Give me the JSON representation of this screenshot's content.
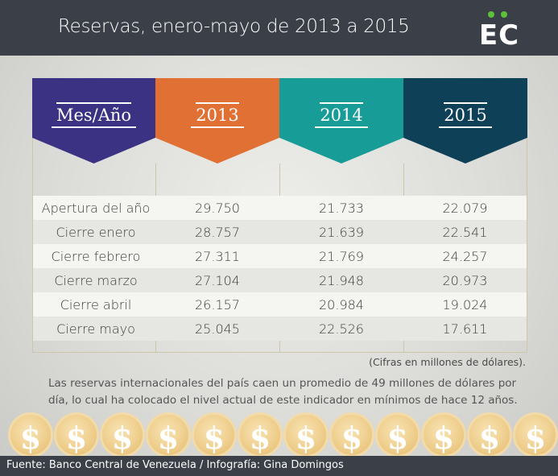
{
  "header": {
    "title": "Reservas, enero-mayo de 2013 a 2015",
    "logo_text": "EC",
    "logo_dot_color": "#5cc23a"
  },
  "table": {
    "columns": [
      {
        "label": "Mes/Año",
        "color": "#3b3283"
      },
      {
        "label": "2013",
        "color": "#e07033"
      },
      {
        "label": "2014",
        "color": "#179c98"
      },
      {
        "label": "2015",
        "color": "#0e4058"
      }
    ],
    "rows": [
      {
        "label": "Apertura del año",
        "values": [
          "29.750",
          "21.733",
          "22.079"
        ]
      },
      {
        "label": "Cierre enero",
        "values": [
          "28.757",
          "21.639",
          "22.541"
        ]
      },
      {
        "label": "Cierre febrero",
        "values": [
          "27.311",
          "21.769",
          "24.257"
        ]
      },
      {
        "label": "Cierre marzo",
        "values": [
          "27.104",
          "21.948",
          "20.973"
        ]
      },
      {
        "label": "Cierre abril",
        "values": [
          "26.157",
          "20.984",
          "19.024"
        ]
      },
      {
        "label": "Cierre mayo",
        "values": [
          "25.045",
          "22.526",
          "17.611"
        ]
      }
    ]
  },
  "notes": {
    "units": "(Cifras en millones de dólares).",
    "main": "Las reservas internacionales del país caen un promedio de 49 millones de dólares por día, lo cual ha colocado el nivel actual de este indicador en mínimos de hace 12 años."
  },
  "coins": {
    "symbol": "$"
  },
  "footer": {
    "text": "Fuente: Banco Central de Venezuela / Infografía: Gina Domingos"
  }
}
